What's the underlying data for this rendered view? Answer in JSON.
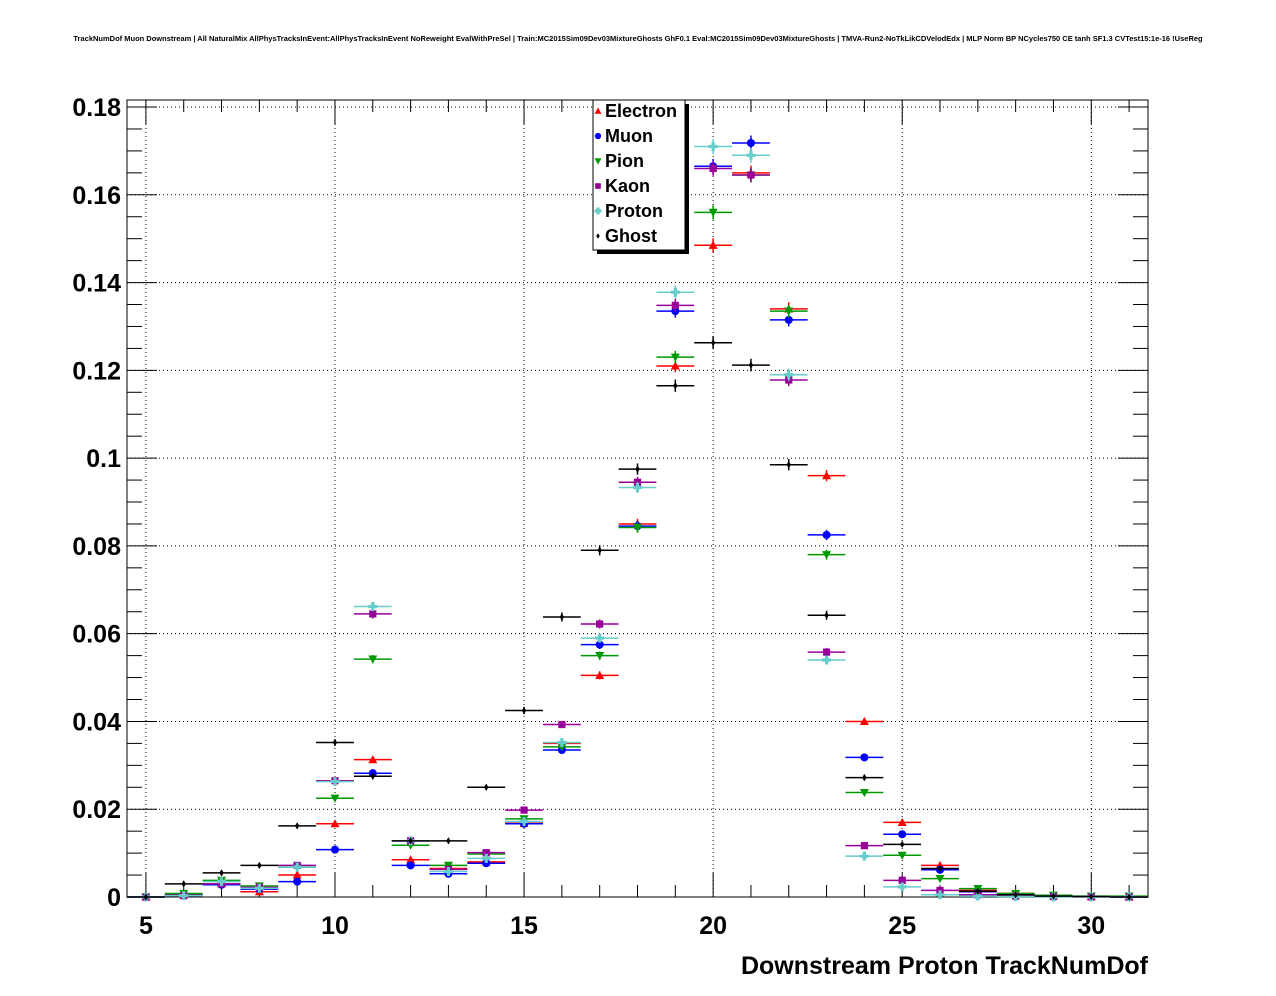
{
  "title": "TrackNumDof Muon Downstream | All NaturalMix AllPhysTracksInEvent:AllPhysTracksInEvent NoReweight EvalWithPreSel | Train:MC2015Sim09Dev03MixtureGhosts GhF0.1 Eval:MC2015Sim09Dev03MixtureGhosts | TMVA-Run2-NoTkLikCDVelodEdx | MLP Norm BP NCycles750 CE tanh SF1.3 CVTest15:1e-16 !UseReg",
  "chart_data": {
    "type": "scatter",
    "title": "TrackNumDof Muon Downstream | All NaturalMix AllPhysTracksInEvent:AllPhysTracksInEvent NoReweight EvalWithPreSel | Train:MC2015Sim09Dev03MixtureGhosts GhF0.1 Eval:MC2015Sim09Dev03MixtureGhosts | TMVA-Run2-NoTkLikCDVelodEdx | MLP Norm BP NCycles750 CE tanh SF1.3 CVTest15:1e-16 !UseReg",
    "xlabel": "Downstream Proton TrackNumDof",
    "ylabel": "",
    "xlim": [
      4.5,
      31.5
    ],
    "ylim": [
      0,
      0.1816
    ],
    "xticks": [
      5,
      10,
      15,
      20,
      25,
      30
    ],
    "xtick_labels": [
      "5",
      "10",
      "15",
      "20",
      "25",
      "30"
    ],
    "yticks": [
      0,
      0.02,
      0.04,
      0.06,
      0.08,
      0.1,
      0.12,
      0.14,
      0.16,
      0.18
    ],
    "ytick_labels": [
      "0",
      "0.02",
      "0.04",
      "0.06",
      "0.08",
      "0.1",
      "0.12",
      "0.14",
      "0.16",
      "0.18"
    ],
    "grid": true,
    "legend_position": "top-center",
    "bin_width": 1,
    "x": [
      5,
      6,
      7,
      8,
      9,
      10,
      11,
      12,
      13,
      14,
      15,
      16,
      17,
      18,
      19,
      20,
      21,
      22,
      23,
      24,
      25,
      26,
      27,
      28,
      29,
      30,
      31
    ],
    "series": [
      {
        "name": "Electron",
        "color": "#ff0000",
        "marker": "triangle-up",
        "values": [
          0,
          0.0005,
          0.003,
          0.0012,
          0.005,
          0.0167,
          0.0313,
          0.0085,
          0.0065,
          0.008,
          0.0168,
          0.035,
          0.0505,
          0.085,
          0.121,
          0.1485,
          0.165,
          0.134,
          0.096,
          0.04,
          0.017,
          0.0072,
          0.0015,
          0.0008,
          0.0003,
          0.0001,
          0
        ]
      },
      {
        "name": "Muon",
        "color": "#0000ff",
        "marker": "circle",
        "values": [
          0,
          0.0004,
          0.0028,
          0.0018,
          0.0035,
          0.0108,
          0.0282,
          0.0072,
          0.0053,
          0.0077,
          0.0167,
          0.0335,
          0.0575,
          0.0845,
          0.1335,
          0.1665,
          0.1718,
          0.1315,
          0.0825,
          0.0318,
          0.0143,
          0.0062,
          0.0012,
          0.0004,
          0.0002,
          0.0001,
          0
        ]
      },
      {
        "name": "Pion",
        "color": "#009900",
        "marker": "triangle-down",
        "values": [
          0,
          0.0008,
          0.0038,
          0.0025,
          0.0068,
          0.0225,
          0.0542,
          0.0118,
          0.0072,
          0.0098,
          0.0178,
          0.0342,
          0.055,
          0.0842,
          0.123,
          0.156,
          0.1645,
          0.1335,
          0.078,
          0.0238,
          0.0095,
          0.0042,
          0.0019,
          0.0008,
          0.0004,
          0.0002,
          0.0002
        ]
      },
      {
        "name": "Kaon",
        "color": "#990099",
        "marker": "square",
        "values": [
          0,
          0.0003,
          0.003,
          0.0022,
          0.0072,
          0.0265,
          0.0645,
          0.0128,
          0.0063,
          0.0101,
          0.0198,
          0.0393,
          0.0622,
          0.0945,
          0.1348,
          0.166,
          0.1645,
          0.1178,
          0.0558,
          0.0117,
          0.0038,
          0.0015,
          0.0005,
          0.0002,
          0.0001,
          0,
          0
        ]
      },
      {
        "name": "Proton",
        "color": "#66cccc",
        "marker": "cross",
        "values": [
          0,
          0.0003,
          0.0035,
          0.002,
          0.0068,
          0.0263,
          0.0662,
          0.0128,
          0.0058,
          0.0088,
          0.0172,
          0.0352,
          0.059,
          0.0933,
          0.1378,
          0.171,
          0.169,
          0.119,
          0.054,
          0.0093,
          0.0023,
          0.0005,
          0.0002,
          0.0001,
          0,
          0,
          0
        ]
      },
      {
        "name": "Ghost",
        "color": "#000000",
        "marker": "diamond",
        "values": [
          0,
          0.003,
          0.0055,
          0.0072,
          0.0162,
          0.0352,
          0.0275,
          0.0128,
          0.0128,
          0.025,
          0.0425,
          0.0638,
          0.079,
          0.0975,
          0.1165,
          0.1263,
          0.1212,
          0.0985,
          0.0642,
          0.0272,
          0.012,
          0.0065,
          0.0013,
          0.0005,
          0.0002,
          0.0001,
          0
        ]
      }
    ]
  }
}
